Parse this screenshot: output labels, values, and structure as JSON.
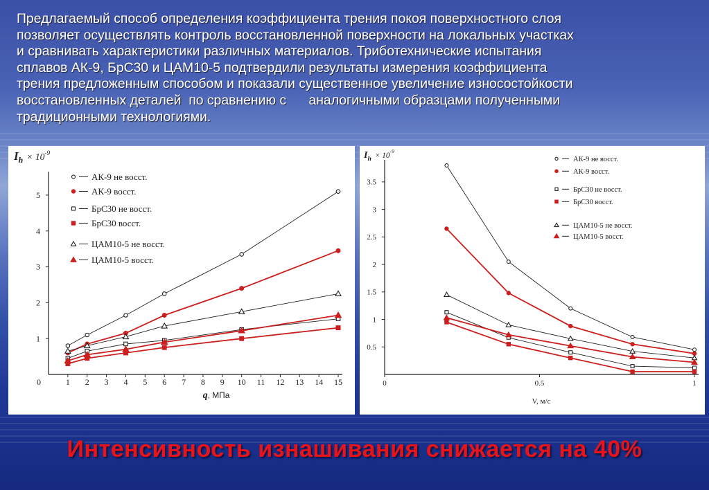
{
  "paragraph": {
    "lines": [
      "Предлагаемый способ определения коэффициента трения покоя поверхностного слоя",
      "позволяет осуществлять контроль восстановленной поверхности на локальных участках",
      "и сравнивать характеристики различных материалов. Триботехнические испытания",
      "сплавов АК-9, БрС30 и ЦАМ10-5 подтвердили результаты измерения коэффициента",
      "трения предложенным способом и показали существенное увеличение износостойкости",
      "восстановленных деталей  по сравнению с      аналогичными образцами полученными",
      "традиционными технологиями."
    ]
  },
  "conclusion": "Интенсивность изнашивания снижается на 40%",
  "chart_data": [
    {
      "type": "line",
      "ylabel": "I",
      "ylabel_sub": "h",
      "ylabel_scale": "× 10",
      "ylabel_exp": "-9",
      "xlabel": "q",
      "xlabel_unit": ", МПа",
      "x_ticks": [
        "0",
        "1",
        "2",
        "3",
        "4",
        "5",
        "6",
        "7",
        "8",
        "9",
        "10",
        "11",
        "12",
        "13",
        "14",
        "15"
      ],
      "y_ticks": [
        "1",
        "2",
        "3",
        "4",
        "5"
      ],
      "xlim": [
        0,
        15
      ],
      "ylim": [
        0,
        5.5
      ],
      "x": [
        1,
        2,
        4,
        6,
        10,
        15
      ],
      "series": [
        {
          "name": "АК-9 не восст.",
          "marker": "circle",
          "color": "#222222",
          "values": [
            0.8,
            1.1,
            1.65,
            2.25,
            3.35,
            5.1
          ]
        },
        {
          "name": "АК-9   восст.",
          "marker": "dot",
          "color": "#cc1f1f",
          "values": [
            0.6,
            0.85,
            1.15,
            1.65,
            2.4,
            3.45
          ]
        },
        {
          "name": "БрС30 не восст.",
          "marker": "square",
          "color": "#222222",
          "values": [
            0.45,
            0.65,
            0.85,
            0.95,
            1.25,
            1.55
          ]
        },
        {
          "name": "БрС30   восст.",
          "marker": "fsquare",
          "color": "#cc1f1f",
          "values": [
            0.3,
            0.45,
            0.6,
            0.75,
            1.0,
            1.3
          ]
        },
        {
          "name": "ЦАМ10-5 не восст.",
          "marker": "triangle",
          "color": "#222222",
          "values": [
            0.65,
            0.8,
            1.05,
            1.35,
            1.75,
            2.25
          ]
        },
        {
          "name": "ЦАМ10-5   восст.",
          "marker": "ftriangle",
          "color": "#cc1f1f",
          "values": [
            0.38,
            0.55,
            0.7,
            0.9,
            1.22,
            1.65
          ]
        }
      ]
    },
    {
      "type": "line",
      "ylabel": "I",
      "ylabel_sub": "h",
      "ylabel_scale": "× 10",
      "ylabel_exp": "-9",
      "xlabel": "V, м/с",
      "x_ticks": [
        "0",
        "0.5",
        "1"
      ],
      "y_ticks": [
        "0.5",
        "1",
        "1.5",
        "2",
        "2.5",
        "3",
        "3.5"
      ],
      "xlim": [
        0,
        1
      ],
      "ylim": [
        0,
        3.8
      ],
      "x": [
        0.2,
        0.4,
        0.6,
        0.8,
        1.0
      ],
      "series": [
        {
          "name": "АК-9 не восст.",
          "marker": "circle",
          "color": "#222222",
          "values": [
            3.8,
            2.05,
            1.2,
            0.68,
            0.45
          ]
        },
        {
          "name": "АК-9   восст.",
          "marker": "dot",
          "color": "#cc1f1f",
          "values": [
            2.65,
            1.48,
            0.88,
            0.55,
            0.38
          ]
        },
        {
          "name": "БрС30 не восст.",
          "marker": "square",
          "color": "#222222",
          "values": [
            1.13,
            0.67,
            0.4,
            0.15,
            0.12
          ]
        },
        {
          "name": "БрС30   восст.",
          "marker": "fsquare",
          "color": "#cc1f1f",
          "values": [
            0.95,
            0.55,
            0.3,
            0.05,
            0.05
          ]
        },
        {
          "name": "ЦАМ10-5 не восст.",
          "marker": "triangle",
          "color": "#222222",
          "values": [
            1.45,
            0.9,
            0.65,
            0.42,
            0.3
          ]
        },
        {
          "name": "ЦАМ10-5   восст.",
          "marker": "ftriangle",
          "color": "#cc1f1f",
          "values": [
            1.03,
            0.72,
            0.52,
            0.32,
            0.22
          ]
        }
      ]
    }
  ]
}
